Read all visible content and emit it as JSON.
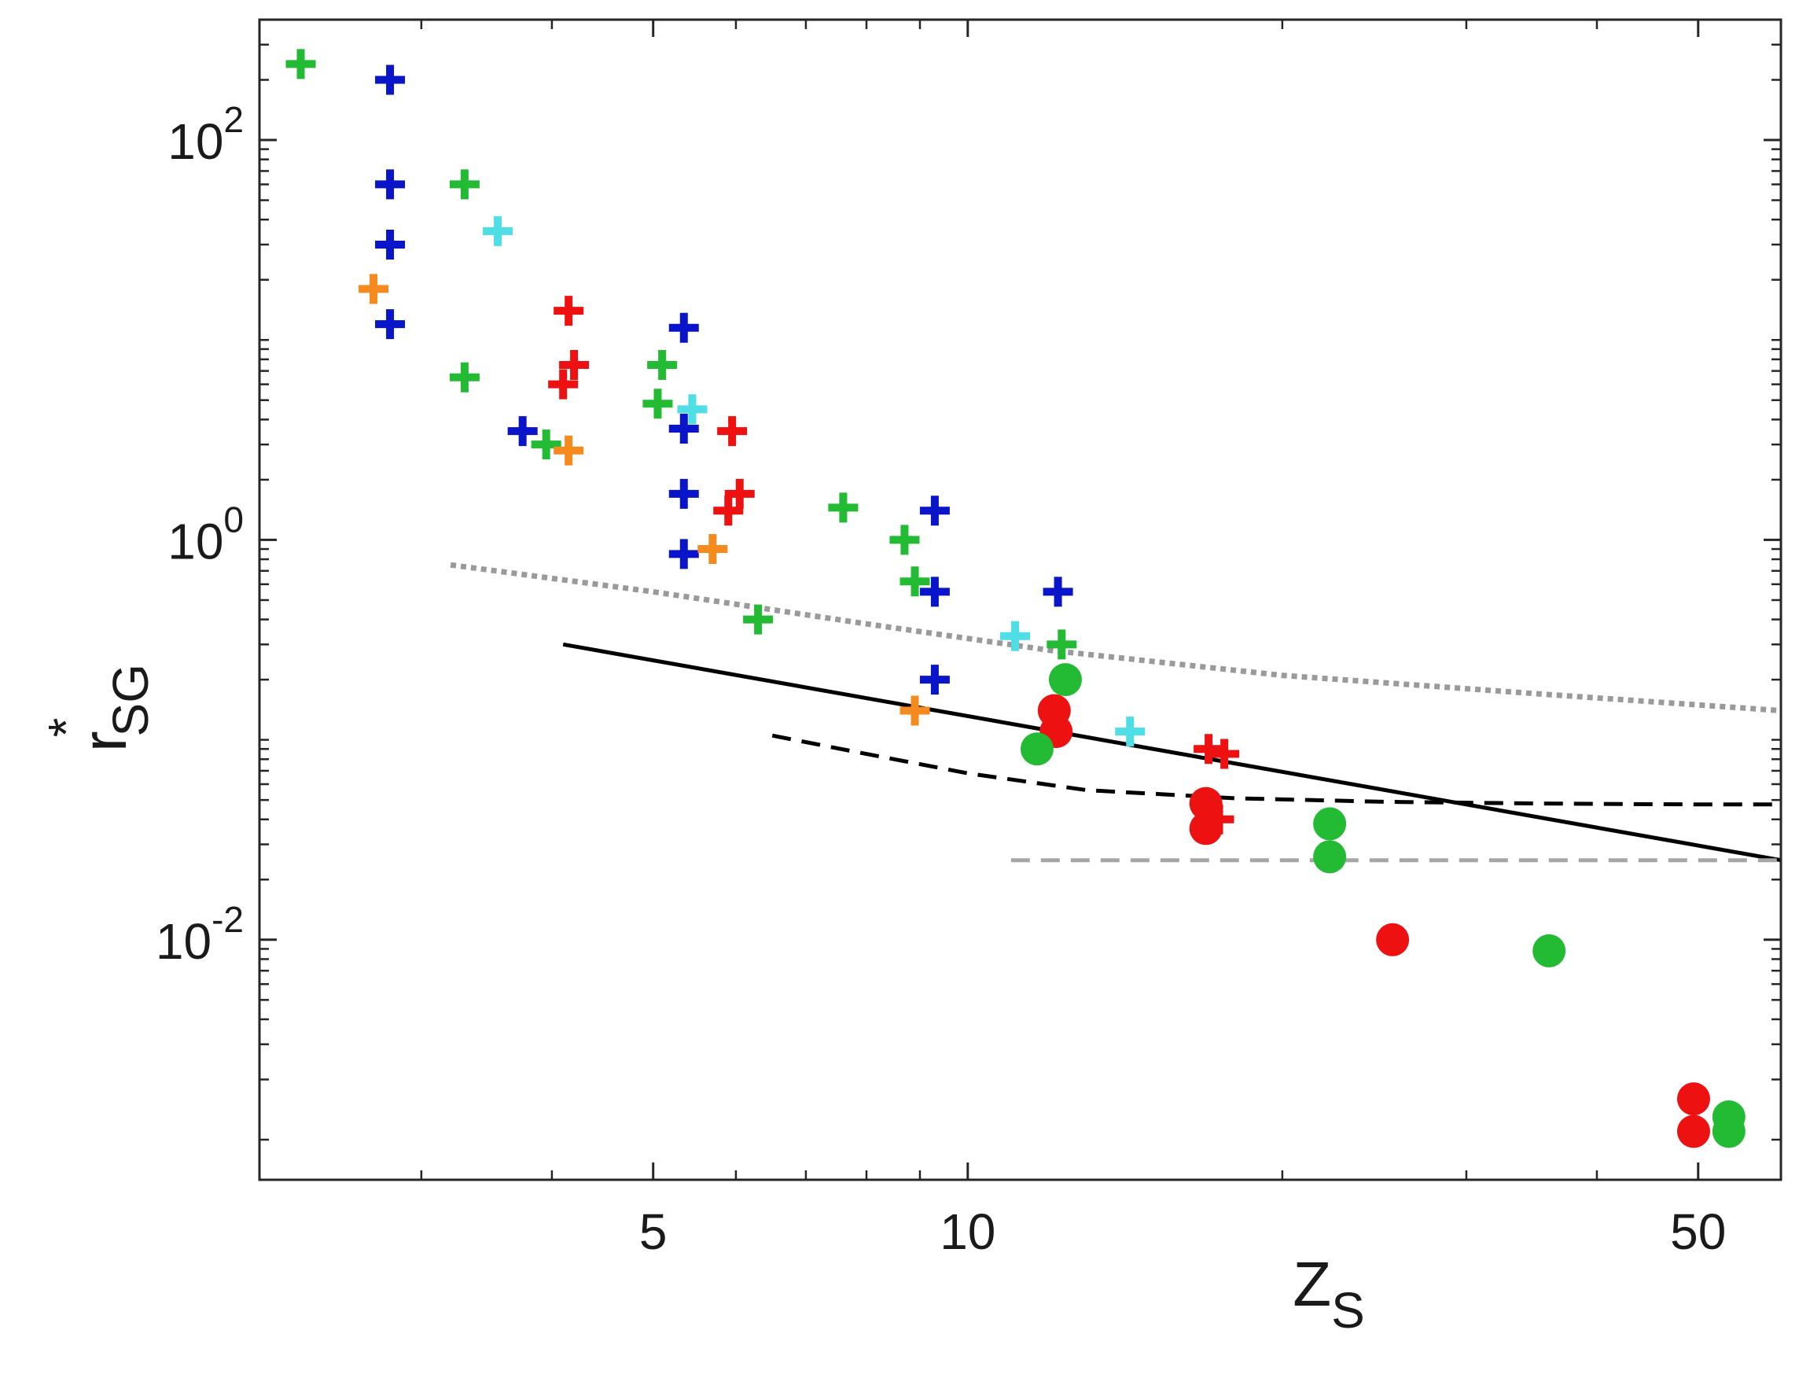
{
  "chart_data": {
    "type": "scatter",
    "title": "",
    "xlabel": "Z",
    "xlabel_subscript": "S",
    "ylabel": "r",
    "ylabel_superscript": "*",
    "ylabel_subscript": "SG",
    "xscale": "log",
    "yscale": "log",
    "xlim": [
      2.1,
      60
    ],
    "ylim": [
      0.00063,
      400
    ],
    "grid": false,
    "x_ticks": [
      5,
      10,
      50
    ],
    "x_tick_labels": [
      "5",
      "10",
      "50"
    ],
    "x_minor_ticks": [
      3,
      4,
      6,
      7,
      8,
      9,
      20,
      30,
      40
    ],
    "y_ticks": [
      {
        "value": 100,
        "base": "10",
        "exp": "2"
      },
      {
        "value": 1,
        "base": "10",
        "exp": "0"
      },
      {
        "value": 0.01,
        "base": "10",
        "exp": "-2"
      }
    ],
    "y_minor_ticks": [
      0.001,
      0.002,
      0.003,
      0.004,
      0.005,
      0.006,
      0.007,
      0.008,
      0.009,
      0.02,
      0.03,
      0.04,
      0.05,
      0.06,
      0.07,
      0.08,
      0.09,
      0.1,
      0.2,
      0.3,
      0.4,
      0.5,
      0.6,
      0.7,
      0.8,
      0.9,
      2,
      3,
      4,
      5,
      6,
      7,
      8,
      9,
      10,
      20,
      30,
      40,
      50,
      60,
      70,
      80,
      90,
      200,
      300
    ],
    "lines": [
      {
        "name": "solid-black",
        "color": "#000000",
        "style": "solid",
        "width": 5,
        "x": [
          4.1,
          60
        ],
        "y": [
          0.3,
          0.025
        ]
      },
      {
        "name": "dashed-black",
        "color": "#000000",
        "style": "dashed",
        "width": 5,
        "x": [
          6.5,
          8,
          10,
          13,
          18,
          25,
          35,
          50,
          60
        ],
        "y": [
          0.105,
          0.085,
          0.068,
          0.056,
          0.051,
          0.049,
          0.048,
          0.0475,
          0.0475
        ]
      },
      {
        "name": "dotted-gray",
        "color": "#9a9a9a",
        "style": "dotted",
        "width": 7,
        "x": [
          3.2,
          5,
          8,
          12,
          20,
          35,
          60
        ],
        "y": [
          0.75,
          0.55,
          0.38,
          0.28,
          0.21,
          0.17,
          0.14
        ]
      },
      {
        "name": "dashed-gray",
        "color": "#a6a6a6",
        "style": "dashed",
        "width": 5,
        "x": [
          11,
          60
        ],
        "y": [
          0.025,
          0.025
        ]
      }
    ],
    "series": [
      {
        "name": "green-plus",
        "marker": "plus",
        "color": "#22bb33",
        "x": [
          2.3,
          3.3,
          3.3,
          3.95,
          5.1,
          5.05,
          6.3,
          7.6,
          8.7,
          8.9,
          12.3
        ],
        "y": [
          240,
          60,
          6.5,
          3,
          7.5,
          4.8,
          0.4,
          1.45,
          1.0,
          0.62,
          0.3
        ]
      },
      {
        "name": "blue-plus",
        "marker": "plus",
        "color": "#0a14c8",
        "x": [
          2.8,
          2.8,
          2.8,
          2.8,
          3.75,
          5.35,
          5.35,
          5.35,
          5.35,
          9.3,
          9.3,
          9.3,
          12.2
        ],
        "y": [
          200,
          60,
          30,
          12,
          3.5,
          11.5,
          3.6,
          1.7,
          0.85,
          1.4,
          0.55,
          0.2,
          0.55
        ]
      },
      {
        "name": "red-plus",
        "marker": "plus",
        "color": "#ee1111",
        "x": [
          4.15,
          4.2,
          4.1,
          5.95,
          6.05,
          5.9,
          17,
          17.6,
          17.4
        ],
        "y": [
          14,
          7.5,
          6,
          3.5,
          1.7,
          1.4,
          0.09,
          0.085,
          0.04
        ]
      },
      {
        "name": "orange-plus",
        "marker": "plus",
        "color": "#f58a1f",
        "x": [
          2.7,
          4.15,
          5.7,
          8.9
        ],
        "y": [
          18,
          2.8,
          0.9,
          0.14
        ]
      },
      {
        "name": "cyan-plus",
        "marker": "plus",
        "color": "#4fdde6",
        "x": [
          3.55,
          5.45,
          11.1,
          14.3
        ],
        "y": [
          35,
          4.5,
          0.33,
          0.11
        ]
      },
      {
        "name": "red-circle",
        "marker": "circle",
        "color": "#ee1111",
        "x": [
          12.1,
          12.15,
          16.9,
          16.9,
          25.5,
          49.5,
          49.5
        ],
        "y": [
          0.14,
          0.11,
          0.048,
          0.036,
          0.01,
          0.0016,
          0.0011
        ]
      },
      {
        "name": "green-circle",
        "marker": "circle",
        "color": "#22bb33",
        "x": [
          11.65,
          12.4,
          22.2,
          22.2,
          36,
          53.5,
          53.5
        ],
        "y": [
          0.09,
          0.2,
          0.038,
          0.026,
          0.0088,
          0.0013,
          0.0011
        ]
      }
    ]
  }
}
